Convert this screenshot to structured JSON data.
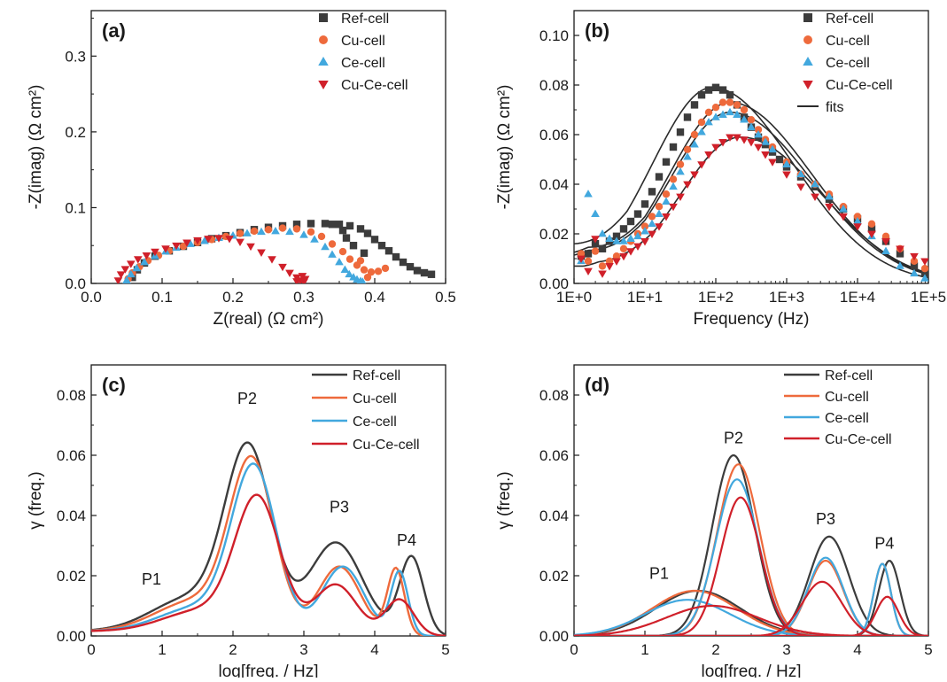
{
  "colors": {
    "ref": "#3c3c3c",
    "cu": "#ee6a3c",
    "ce": "#42a8de",
    "cuce": "#d0202a",
    "fit": "#2b2b2b"
  },
  "chart_data": [
    {
      "id": "a",
      "panel_label": "(a)",
      "type": "scatter",
      "xlabel": "Z(real) (Ω cm²)",
      "ylabel": "-Z(imag) (Ω cm²)",
      "xlim": [
        0,
        0.5
      ],
      "ylim": [
        0,
        0.36
      ],
      "xticks": [
        "0.0",
        "0.1",
        "0.2",
        "0.3",
        "0.4",
        "0.5"
      ],
      "yticks": [
        "0.0",
        "0.1",
        "0.2",
        "0.3"
      ],
      "legend_position": "top-right",
      "series": [
        {
          "name": "Ref-cell",
          "color": "ref",
          "marker": "square",
          "x": [
            0.058,
            0.065,
            0.075,
            0.09,
            0.11,
            0.13,
            0.15,
            0.17,
            0.19,
            0.21,
            0.23,
            0.25,
            0.27,
            0.29,
            0.31,
            0.33,
            0.35,
            0.365,
            0.38,
            0.39,
            0.4,
            0.41,
            0.42,
            0.43,
            0.44,
            0.45,
            0.46,
            0.47,
            0.48,
            0.385,
            0.37,
            0.355,
            0.34,
            0.36
          ],
          "y": [
            0.008,
            0.018,
            0.027,
            0.036,
            0.043,
            0.049,
            0.054,
            0.059,
            0.063,
            0.067,
            0.071,
            0.074,
            0.076,
            0.078,
            0.079,
            0.079,
            0.078,
            0.076,
            0.072,
            0.066,
            0.058,
            0.05,
            0.043,
            0.035,
            0.028,
            0.022,
            0.017,
            0.014,
            0.012,
            0.04,
            0.05,
            0.07,
            0.078,
            0.06
          ]
        },
        {
          "name": "Cu-cell",
          "color": "cu",
          "marker": "circle",
          "x": [
            0.052,
            0.058,
            0.068,
            0.08,
            0.095,
            0.11,
            0.13,
            0.15,
            0.17,
            0.19,
            0.21,
            0.23,
            0.25,
            0.27,
            0.29,
            0.31,
            0.325,
            0.34,
            0.355,
            0.365,
            0.375,
            0.385,
            0.395,
            0.405,
            0.415,
            0.38,
            0.39
          ],
          "y": [
            0.006,
            0.014,
            0.022,
            0.03,
            0.037,
            0.043,
            0.049,
            0.054,
            0.058,
            0.062,
            0.066,
            0.069,
            0.071,
            0.073,
            0.072,
            0.068,
            0.062,
            0.052,
            0.042,
            0.032,
            0.024,
            0.018,
            0.015,
            0.016,
            0.02,
            0.03,
            0.008
          ]
        },
        {
          "name": "Ce-cell",
          "color": "ce",
          "marker": "triangle-up",
          "x": [
            0.05,
            0.056,
            0.064,
            0.075,
            0.09,
            0.105,
            0.12,
            0.14,
            0.16,
            0.18,
            0.2,
            0.22,
            0.24,
            0.26,
            0.28,
            0.3,
            0.315,
            0.33,
            0.34,
            0.35,
            0.358,
            0.364,
            0.37,
            0.375,
            0.38,
            0.383
          ],
          "y": [
            0.004,
            0.012,
            0.02,
            0.028,
            0.036,
            0.042,
            0.047,
            0.052,
            0.056,
            0.06,
            0.063,
            0.066,
            0.068,
            0.069,
            0.068,
            0.064,
            0.058,
            0.048,
            0.038,
            0.028,
            0.018,
            0.012,
            0.008,
            0.005,
            0.003,
            0.002
          ]
        },
        {
          "name": "Cu-Ce-cell",
          "color": "cuce",
          "marker": "triangle-down",
          "x": [
            0.038,
            0.042,
            0.048,
            0.056,
            0.066,
            0.078,
            0.09,
            0.105,
            0.12,
            0.135,
            0.15,
            0.165,
            0.18,
            0.195,
            0.21,
            0.225,
            0.24,
            0.255,
            0.27,
            0.28,
            0.29,
            0.295,
            0.3,
            0.302,
            0.298,
            0.29
          ],
          "y": [
            0.004,
            0.012,
            0.019,
            0.026,
            0.032,
            0.037,
            0.042,
            0.046,
            0.05,
            0.054,
            0.057,
            0.059,
            0.06,
            0.059,
            0.055,
            0.049,
            0.041,
            0.032,
            0.022,
            0.014,
            0.008,
            0.004,
            0.002,
            0.006,
            0.01,
            0.003
          ]
        }
      ]
    },
    {
      "id": "b",
      "panel_label": "(b)",
      "type": "scatter",
      "xlabel": "Frequency (Hz)",
      "ylabel": "-Z(imag) (Ω cm²)",
      "xscale": "log",
      "xlim": [
        0,
        5
      ],
      "ylim": [
        0,
        0.11
      ],
      "xticks": [
        "1E+0",
        "1E+1",
        "1E+2",
        "1E+3",
        "1E+4",
        "1E+5"
      ],
      "yticks": [
        "0.00",
        "0.02",
        "0.04",
        "0.06",
        "0.08",
        "0.10"
      ],
      "legend_position": "top-right",
      "fit_label": "fits",
      "series": [
        {
          "name": "Ref-cell",
          "color": "ref",
          "marker": "square",
          "peak_logf": 1.95,
          "peak": 0.079,
          "hf": 0.003,
          "lf": 0.011,
          "x": [
            0.1,
            0.2,
            0.3,
            0.4,
            0.5,
            0.6,
            0.7,
            0.8,
            0.9,
            1.0,
            1.1,
            1.2,
            1.3,
            1.4,
            1.5,
            1.6,
            1.7,
            1.8,
            1.9,
            2.0,
            2.1,
            2.2,
            2.3,
            2.4,
            2.5,
            2.6,
            2.7,
            2.8,
            2.9,
            3.0,
            3.2,
            3.4,
            3.6,
            3.8,
            4.0,
            4.2,
            4.4,
            4.6,
            4.8,
            4.95
          ],
          "y": [
            0.011,
            0.012,
            0.016,
            0.014,
            0.017,
            0.019,
            0.022,
            0.025,
            0.028,
            0.032,
            0.037,
            0.043,
            0.049,
            0.055,
            0.061,
            0.067,
            0.072,
            0.076,
            0.078,
            0.079,
            0.078,
            0.076,
            0.072,
            0.067,
            0.063,
            0.059,
            0.056,
            0.053,
            0.05,
            0.047,
            0.043,
            0.039,
            0.034,
            0.03,
            0.026,
            0.022,
            0.017,
            0.012,
            0.007,
            0.004
          ]
        },
        {
          "name": "Cu-cell",
          "color": "cu",
          "marker": "circle",
          "peak_logf": 2.2,
          "peak": 0.073,
          "hf": 0.004,
          "lf": 0.01,
          "x": [
            0.1,
            0.2,
            0.3,
            0.4,
            0.5,
            0.6,
            0.7,
            0.8,
            0.9,
            1.0,
            1.1,
            1.2,
            1.3,
            1.4,
            1.5,
            1.6,
            1.7,
            1.8,
            1.9,
            2.0,
            2.1,
            2.2,
            2.3,
            2.4,
            2.5,
            2.6,
            2.7,
            2.8,
            3.0,
            3.2,
            3.4,
            3.6,
            3.8,
            4.0,
            4.2,
            4.4,
            4.6,
            4.8,
            4.95
          ],
          "y": [
            0.012,
            0.009,
            0.013,
            0.007,
            0.009,
            0.011,
            0.014,
            0.017,
            0.02,
            0.023,
            0.027,
            0.031,
            0.036,
            0.042,
            0.048,
            0.054,
            0.06,
            0.065,
            0.069,
            0.071,
            0.073,
            0.073,
            0.072,
            0.07,
            0.066,
            0.062,
            0.058,
            0.055,
            0.049,
            0.044,
            0.04,
            0.036,
            0.031,
            0.027,
            0.024,
            0.019,
            0.014,
            0.009,
            0.006
          ]
        },
        {
          "name": "Ce-cell",
          "color": "ce",
          "marker": "triangle-up",
          "peak_logf": 2.2,
          "peak": 0.069,
          "hf": 0.003,
          "lf": 0.009,
          "x": [
            0.1,
            0.2,
            0.3,
            0.4,
            0.5,
            0.6,
            0.7,
            0.8,
            0.9,
            1.0,
            1.1,
            1.2,
            1.3,
            1.4,
            1.5,
            1.6,
            1.7,
            1.8,
            1.9,
            2.0,
            2.1,
            2.2,
            2.3,
            2.4,
            2.5,
            2.6,
            2.7,
            2.8,
            3.0,
            3.2,
            3.4,
            3.6,
            3.8,
            4.0,
            4.2,
            4.4,
            4.6,
            4.8,
            4.95
          ],
          "y": [
            0.009,
            0.036,
            0.028,
            0.02,
            0.018,
            0.017,
            0.017,
            0.018,
            0.019,
            0.021,
            0.024,
            0.028,
            0.033,
            0.039,
            0.045,
            0.051,
            0.056,
            0.061,
            0.065,
            0.067,
            0.068,
            0.069,
            0.068,
            0.066,
            0.063,
            0.06,
            0.057,
            0.054,
            0.048,
            0.044,
            0.04,
            0.035,
            0.03,
            0.025,
            0.019,
            0.013,
            0.007,
            0.004,
            0.002
          ]
        },
        {
          "name": "Cu-Ce-cell",
          "color": "cuce",
          "marker": "triangle-down",
          "peak_logf": 2.35,
          "peak": 0.059,
          "hf": 0.008,
          "lf": 0.005,
          "x": [
            0.1,
            0.2,
            0.3,
            0.4,
            0.5,
            0.6,
            0.7,
            0.8,
            0.9,
            1.0,
            1.1,
            1.2,
            1.3,
            1.4,
            1.5,
            1.6,
            1.7,
            1.8,
            1.9,
            2.0,
            2.1,
            2.2,
            2.3,
            2.4,
            2.5,
            2.6,
            2.7,
            2.8,
            3.0,
            3.2,
            3.4,
            3.6,
            3.8,
            4.0,
            4.2,
            4.4,
            4.6,
            4.8,
            4.95
          ],
          "y": [
            0.01,
            0.005,
            0.018,
            0.004,
            0.007,
            0.009,
            0.011,
            0.013,
            0.015,
            0.017,
            0.02,
            0.023,
            0.027,
            0.031,
            0.035,
            0.04,
            0.044,
            0.048,
            0.052,
            0.055,
            0.057,
            0.059,
            0.059,
            0.058,
            0.057,
            0.055,
            0.052,
            0.049,
            0.044,
            0.039,
            0.035,
            0.031,
            0.027,
            0.023,
            0.02,
            0.017,
            0.014,
            0.011,
            0.009
          ]
        }
      ]
    },
    {
      "id": "c",
      "panel_label": "(c)",
      "type": "line",
      "xlabel": "log[freq. / Hz]",
      "ylabel": "γ (freq.)",
      "xlim": [
        0,
        5
      ],
      "ylim": [
        0,
        0.09
      ],
      "xticks": [
        "0",
        "1",
        "2",
        "3",
        "4",
        "5"
      ],
      "yticks": [
        "0.00",
        "0.02",
        "0.04",
        "0.06",
        "0.08"
      ],
      "legend_position": "top-right",
      "annotations": [
        {
          "text": "P1",
          "x": 0.85,
          "y": 0.017
        },
        {
          "text": "P2",
          "x": 2.2,
          "y": 0.077
        },
        {
          "text": "P3",
          "x": 3.5,
          "y": 0.041
        },
        {
          "text": "P4",
          "x": 4.45,
          "y": 0.03
        }
      ],
      "series": [
        {
          "name": "Ref-cell",
          "color": "ref",
          "peaks": [
            [
              1.4,
              0.012,
              0.55
            ],
            [
              2.22,
              0.06,
              0.33
            ],
            [
              3.45,
              0.031,
              0.38
            ],
            [
              4.52,
              0.026,
              0.17
            ]
          ]
        },
        {
          "name": "Cu-cell",
          "color": "cu",
          "peaks": [
            [
              1.45,
              0.011,
              0.55
            ],
            [
              2.27,
              0.056,
              0.32
            ],
            [
              3.5,
              0.023,
              0.3
            ],
            [
              4.3,
              0.022,
              0.12
            ]
          ]
        },
        {
          "name": "Ce-cell",
          "color": "ce",
          "peaks": [
            [
              1.5,
              0.009,
              0.55
            ],
            [
              2.3,
              0.054,
              0.32
            ],
            [
              3.55,
              0.023,
              0.3
            ],
            [
              4.35,
              0.021,
              0.12
            ]
          ]
        },
        {
          "name": "Cu-Ce-cell",
          "color": "cuce",
          "peaks": [
            [
              1.55,
              0.008,
              0.55
            ],
            [
              2.35,
              0.044,
              0.32
            ],
            [
              3.45,
              0.017,
              0.3
            ],
            [
              4.35,
              0.012,
              0.2
            ]
          ]
        }
      ]
    },
    {
      "id": "d",
      "panel_label": "(d)",
      "type": "line",
      "xlabel": "log[freq. / Hz]",
      "ylabel": "γ (freq.)",
      "xlim": [
        0,
        5
      ],
      "ylim": [
        0,
        0.09
      ],
      "xticks": [
        "0",
        "1",
        "2",
        "3",
        "4",
        "5"
      ],
      "yticks": [
        "0.00",
        "0.02",
        "0.04",
        "0.06",
        "0.08"
      ],
      "legend_position": "top-right",
      "annotations": [
        {
          "text": "P1",
          "x": 1.2,
          "y": 0.019
        },
        {
          "text": "P2",
          "x": 2.25,
          "y": 0.064
        },
        {
          "text": "P3",
          "x": 3.55,
          "y": 0.037
        },
        {
          "text": "P4",
          "x": 4.38,
          "y": 0.029
        }
      ],
      "series": [
        {
          "name": "Ref-cell",
          "color": "ref",
          "peaks": [
            [
              1.75,
              0.015,
              0.6
            ],
            [
              2.25,
              0.06,
              0.3
            ],
            [
              3.6,
              0.033,
              0.28
            ],
            [
              4.45,
              0.025,
              0.15
            ]
          ]
        },
        {
          "name": "Cu-cell",
          "color": "cu",
          "peaks": [
            [
              1.7,
              0.015,
              0.6
            ],
            [
              2.32,
              0.057,
              0.3
            ],
            [
              3.55,
              0.025,
              0.25
            ],
            [
              4.35,
              0.024,
              0.12
            ]
          ]
        },
        {
          "name": "Ce-cell",
          "color": "ce",
          "peaks": [
            [
              1.6,
              0.012,
              0.6
            ],
            [
              2.3,
              0.052,
              0.3
            ],
            [
              3.55,
              0.026,
              0.25
            ],
            [
              4.35,
              0.024,
              0.12
            ]
          ]
        },
        {
          "name": "Cu-Ce-cell",
          "color": "cuce",
          "peaks": [
            [
              1.95,
              0.01,
              0.65
            ],
            [
              2.35,
              0.046,
              0.28
            ],
            [
              3.5,
              0.018,
              0.28
            ],
            [
              4.42,
              0.013,
              0.16
            ]
          ]
        }
      ]
    }
  ]
}
